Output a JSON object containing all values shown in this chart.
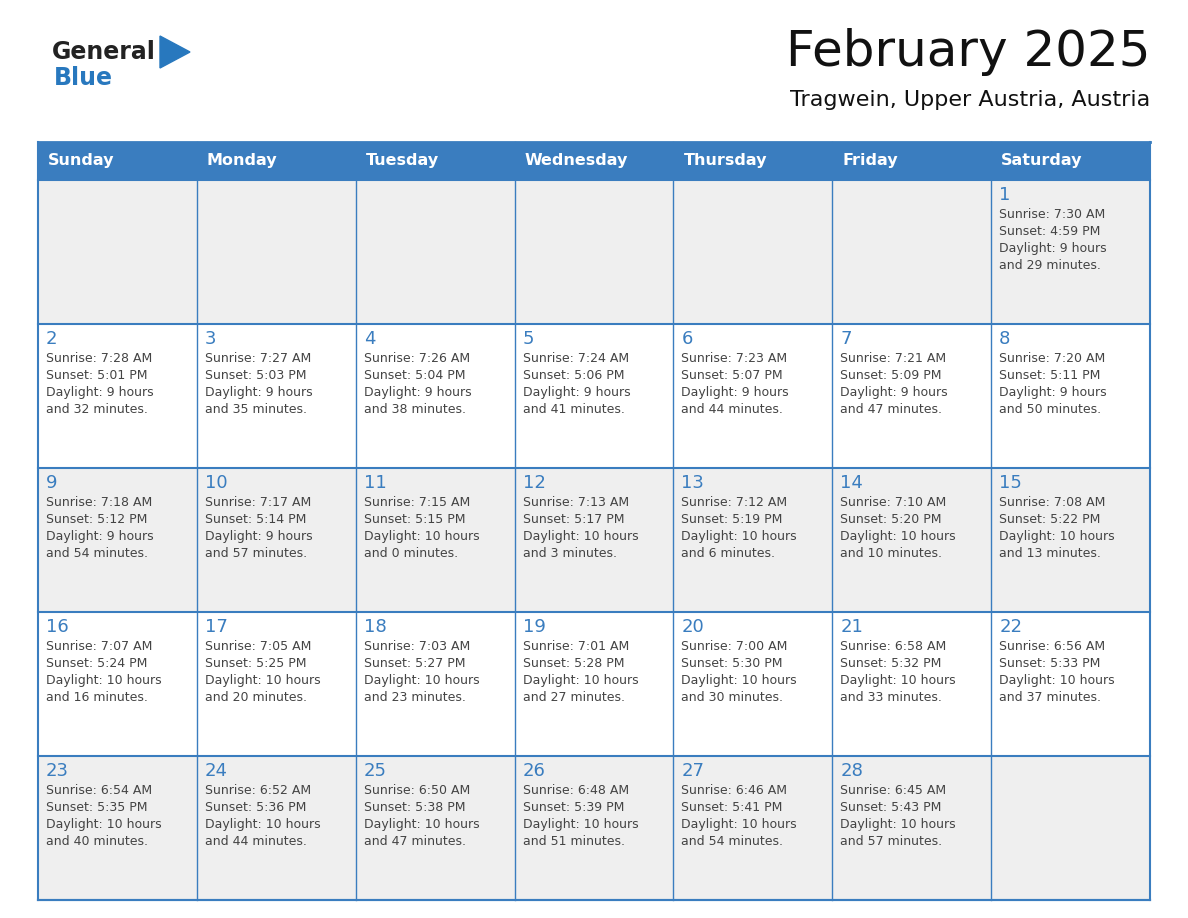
{
  "title": "February 2025",
  "subtitle": "Tragwein, Upper Austria, Austria",
  "days_of_week": [
    "Sunday",
    "Monday",
    "Tuesday",
    "Wednesday",
    "Thursday",
    "Friday",
    "Saturday"
  ],
  "header_bg": "#3a7dbf",
  "header_text": "#ffffff",
  "cell_bg_odd": "#efefef",
  "cell_bg_even": "#ffffff",
  "border_color": "#3a7dbf",
  "day_num_color": "#3a7dbf",
  "text_color": "#444444",
  "logo_general_color": "#222222",
  "logo_blue_color": "#2878be",
  "calendar": [
    [
      {
        "day": "",
        "info": ""
      },
      {
        "day": "",
        "info": ""
      },
      {
        "day": "",
        "info": ""
      },
      {
        "day": "",
        "info": ""
      },
      {
        "day": "",
        "info": ""
      },
      {
        "day": "",
        "info": ""
      },
      {
        "day": "1",
        "info": "Sunrise: 7:30 AM\nSunset: 4:59 PM\nDaylight: 9 hours\nand 29 minutes."
      }
    ],
    [
      {
        "day": "2",
        "info": "Sunrise: 7:28 AM\nSunset: 5:01 PM\nDaylight: 9 hours\nand 32 minutes."
      },
      {
        "day": "3",
        "info": "Sunrise: 7:27 AM\nSunset: 5:03 PM\nDaylight: 9 hours\nand 35 minutes."
      },
      {
        "day": "4",
        "info": "Sunrise: 7:26 AM\nSunset: 5:04 PM\nDaylight: 9 hours\nand 38 minutes."
      },
      {
        "day": "5",
        "info": "Sunrise: 7:24 AM\nSunset: 5:06 PM\nDaylight: 9 hours\nand 41 minutes."
      },
      {
        "day": "6",
        "info": "Sunrise: 7:23 AM\nSunset: 5:07 PM\nDaylight: 9 hours\nand 44 minutes."
      },
      {
        "day": "7",
        "info": "Sunrise: 7:21 AM\nSunset: 5:09 PM\nDaylight: 9 hours\nand 47 minutes."
      },
      {
        "day": "8",
        "info": "Sunrise: 7:20 AM\nSunset: 5:11 PM\nDaylight: 9 hours\nand 50 minutes."
      }
    ],
    [
      {
        "day": "9",
        "info": "Sunrise: 7:18 AM\nSunset: 5:12 PM\nDaylight: 9 hours\nand 54 minutes."
      },
      {
        "day": "10",
        "info": "Sunrise: 7:17 AM\nSunset: 5:14 PM\nDaylight: 9 hours\nand 57 minutes."
      },
      {
        "day": "11",
        "info": "Sunrise: 7:15 AM\nSunset: 5:15 PM\nDaylight: 10 hours\nand 0 minutes."
      },
      {
        "day": "12",
        "info": "Sunrise: 7:13 AM\nSunset: 5:17 PM\nDaylight: 10 hours\nand 3 minutes."
      },
      {
        "day": "13",
        "info": "Sunrise: 7:12 AM\nSunset: 5:19 PM\nDaylight: 10 hours\nand 6 minutes."
      },
      {
        "day": "14",
        "info": "Sunrise: 7:10 AM\nSunset: 5:20 PM\nDaylight: 10 hours\nand 10 minutes."
      },
      {
        "day": "15",
        "info": "Sunrise: 7:08 AM\nSunset: 5:22 PM\nDaylight: 10 hours\nand 13 minutes."
      }
    ],
    [
      {
        "day": "16",
        "info": "Sunrise: 7:07 AM\nSunset: 5:24 PM\nDaylight: 10 hours\nand 16 minutes."
      },
      {
        "day": "17",
        "info": "Sunrise: 7:05 AM\nSunset: 5:25 PM\nDaylight: 10 hours\nand 20 minutes."
      },
      {
        "day": "18",
        "info": "Sunrise: 7:03 AM\nSunset: 5:27 PM\nDaylight: 10 hours\nand 23 minutes."
      },
      {
        "day": "19",
        "info": "Sunrise: 7:01 AM\nSunset: 5:28 PM\nDaylight: 10 hours\nand 27 minutes."
      },
      {
        "day": "20",
        "info": "Sunrise: 7:00 AM\nSunset: 5:30 PM\nDaylight: 10 hours\nand 30 minutes."
      },
      {
        "day": "21",
        "info": "Sunrise: 6:58 AM\nSunset: 5:32 PM\nDaylight: 10 hours\nand 33 minutes."
      },
      {
        "day": "22",
        "info": "Sunrise: 6:56 AM\nSunset: 5:33 PM\nDaylight: 10 hours\nand 37 minutes."
      }
    ],
    [
      {
        "day": "23",
        "info": "Sunrise: 6:54 AM\nSunset: 5:35 PM\nDaylight: 10 hours\nand 40 minutes."
      },
      {
        "day": "24",
        "info": "Sunrise: 6:52 AM\nSunset: 5:36 PM\nDaylight: 10 hours\nand 44 minutes."
      },
      {
        "day": "25",
        "info": "Sunrise: 6:50 AM\nSunset: 5:38 PM\nDaylight: 10 hours\nand 47 minutes."
      },
      {
        "day": "26",
        "info": "Sunrise: 6:48 AM\nSunset: 5:39 PM\nDaylight: 10 hours\nand 51 minutes."
      },
      {
        "day": "27",
        "info": "Sunrise: 6:46 AM\nSunset: 5:41 PM\nDaylight: 10 hours\nand 54 minutes."
      },
      {
        "day": "28",
        "info": "Sunrise: 6:45 AM\nSunset: 5:43 PM\nDaylight: 10 hours\nand 57 minutes."
      },
      {
        "day": "",
        "info": ""
      }
    ]
  ]
}
